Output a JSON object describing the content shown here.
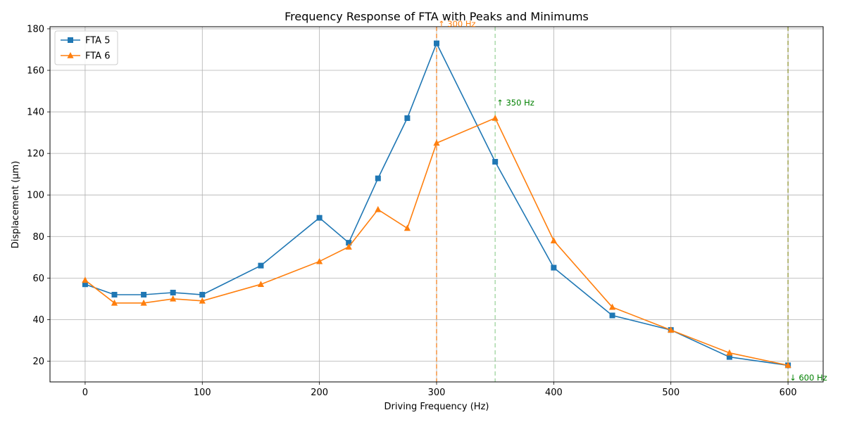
{
  "chart_data": {
    "type": "line",
    "title": "Frequency Response of FTA with Peaks and Minimums",
    "xlabel": "Driving Frequency (Hz)",
    "ylabel": "Displacement (μm)",
    "xlim": [
      -30,
      630
    ],
    "ylim": [
      10,
      181
    ],
    "xticks": [
      0,
      100,
      200,
      300,
      400,
      500,
      600
    ],
    "yticks": [
      20,
      40,
      60,
      80,
      100,
      120,
      140,
      160,
      180
    ],
    "grid": true,
    "legend_position": "upper-left",
    "series": [
      {
        "name": "FTA 5",
        "color": "#1f77b4",
        "marker": "square",
        "x": [
          0,
          25,
          50,
          75,
          100,
          150,
          200,
          225,
          250,
          275,
          300,
          350,
          400,
          450,
          500,
          550,
          600
        ],
        "y": [
          57,
          52,
          52,
          53,
          52,
          66,
          89,
          77,
          108,
          137,
          173,
          116,
          65,
          42,
          35,
          22,
          18
        ]
      },
      {
        "name": "FTA 6",
        "color": "#ff7f0e",
        "marker": "triangle",
        "x": [
          0,
          25,
          50,
          75,
          100,
          150,
          200,
          225,
          250,
          275,
          300,
          350,
          400,
          450,
          500,
          550,
          600
        ],
        "y": [
          59,
          48,
          48,
          50,
          49,
          57,
          68,
          75,
          93,
          84,
          125,
          137,
          78,
          46,
          35,
          24,
          18
        ]
      }
    ],
    "vlines": [
      {
        "x": 300,
        "color": "#ff7f0e",
        "opacity": 0.75
      },
      {
        "x": 350,
        "color": "#2ca02c",
        "opacity": 0.4
      },
      {
        "x": 600,
        "color": "#ff7f0e",
        "opacity": 0.5
      },
      {
        "x": 600,
        "color": "#2ca02c",
        "opacity": 0.4
      }
    ],
    "annotations": [
      {
        "text": "↑ 300 Hz",
        "x": 300,
        "y": 180,
        "color": "#ff7f0e",
        "position": "above-right"
      },
      {
        "text": "↑ 350 Hz",
        "x": 350,
        "y": 142,
        "color": "#008000",
        "position": "above-right"
      },
      {
        "text": "↓ 600 Hz",
        "x": 600,
        "y": 13,
        "color": "#008000",
        "position": "below-right"
      }
    ]
  }
}
